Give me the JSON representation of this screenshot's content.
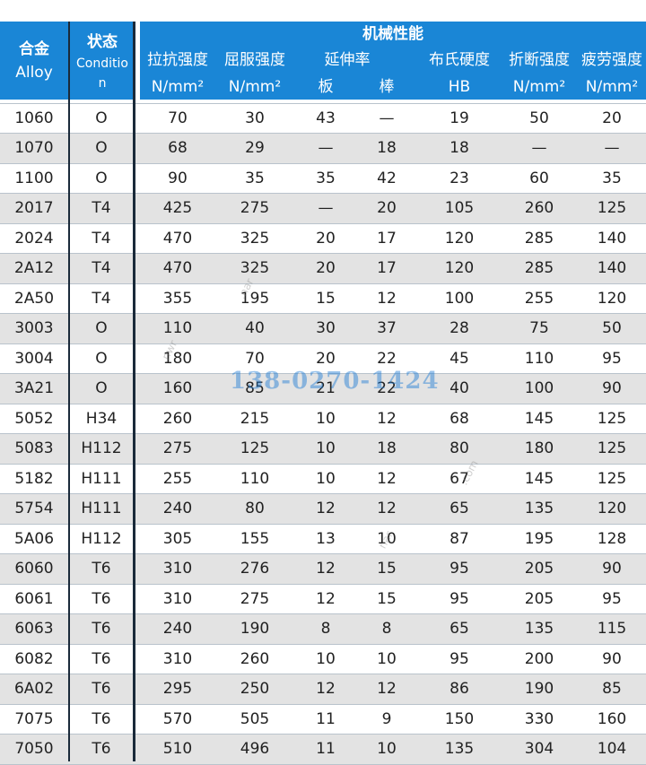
{
  "header": {
    "alloy_cn": "合金",
    "alloy_en": "Alloy",
    "condition_cn": "状态",
    "condition_en_1": "Conditio",
    "condition_en_2": "n",
    "group_title": "机械性能",
    "columns": [
      {
        "name": "拉抗强度",
        "unit": "N/mm²"
      },
      {
        "name": "屈服强度",
        "unit": "N/mm²"
      },
      {
        "name": "延伸率",
        "sub": [
          "板",
          "棒"
        ]
      },
      {
        "name": "布氏硬度",
        "unit": "HB"
      },
      {
        "name": "折断强度",
        "unit": "N/mm²"
      },
      {
        "name": "疲劳强度",
        "unit": "N/mm²"
      }
    ]
  },
  "rows": [
    [
      "1060",
      "O",
      "70",
      "30",
      "43",
      "—",
      "19",
      "50",
      "20"
    ],
    [
      "1070",
      "O",
      "68",
      "29",
      "—",
      "18",
      "18",
      "—",
      "—"
    ],
    [
      "1100",
      "O",
      "90",
      "35",
      "35",
      "42",
      "23",
      "60",
      "35"
    ],
    [
      "2017",
      "T4",
      "425",
      "275",
      "—",
      "20",
      "105",
      "260",
      "125"
    ],
    [
      "2024",
      "T4",
      "470",
      "325",
      "20",
      "17",
      "120",
      "285",
      "140"
    ],
    [
      "2A12",
      "T4",
      "470",
      "325",
      "20",
      "17",
      "120",
      "285",
      "140"
    ],
    [
      "2A50",
      "T4",
      "355",
      "195",
      "15",
      "12",
      "100",
      "255",
      "120"
    ],
    [
      "3003",
      "O",
      "110",
      "40",
      "30",
      "37",
      "28",
      "75",
      "50"
    ],
    [
      "3004",
      "O",
      "180",
      "70",
      "20",
      "22",
      "45",
      "110",
      "95"
    ],
    [
      "3A21",
      "O",
      "160",
      "85",
      "21",
      "22",
      "40",
      "100",
      "90"
    ],
    [
      "5052",
      "H34",
      "260",
      "215",
      "10",
      "12",
      "68",
      "145",
      "125"
    ],
    [
      "5083",
      "H112",
      "275",
      "125",
      "10",
      "18",
      "80",
      "180",
      "125"
    ],
    [
      "5182",
      "H111",
      "255",
      "110",
      "10",
      "12",
      "67",
      "145",
      "125"
    ],
    [
      "5754",
      "H111",
      "240",
      "80",
      "12",
      "12",
      "65",
      "135",
      "120"
    ],
    [
      "5A06",
      "H112",
      "305",
      "155",
      "13",
      "10",
      "87",
      "195",
      "128"
    ],
    [
      "6060",
      "T6",
      "310",
      "276",
      "12",
      "15",
      "95",
      "205",
      "90"
    ],
    [
      "6061",
      "T6",
      "310",
      "275",
      "12",
      "15",
      "95",
      "205",
      "95"
    ],
    [
      "6063",
      "T6",
      "240",
      "190",
      "8",
      "8",
      "65",
      "135",
      "115"
    ],
    [
      "6082",
      "T6",
      "310",
      "260",
      "10",
      "10",
      "95",
      "200",
      "90"
    ],
    [
      "6A02",
      "T6",
      "295",
      "250",
      "12",
      "12",
      "86",
      "190",
      "85"
    ],
    [
      "7075",
      "T6",
      "570",
      "505",
      "11",
      "9",
      "150",
      "330",
      "160"
    ],
    [
      "7050",
      "T6",
      "510",
      "496",
      "11",
      "10",
      "135",
      "304",
      "104"
    ]
  ],
  "watermark": {
    "phone": "138-0270-1424"
  },
  "colors": {
    "header_bg": "#1a86d6",
    "stripe": "#e3e3e3"
  }
}
